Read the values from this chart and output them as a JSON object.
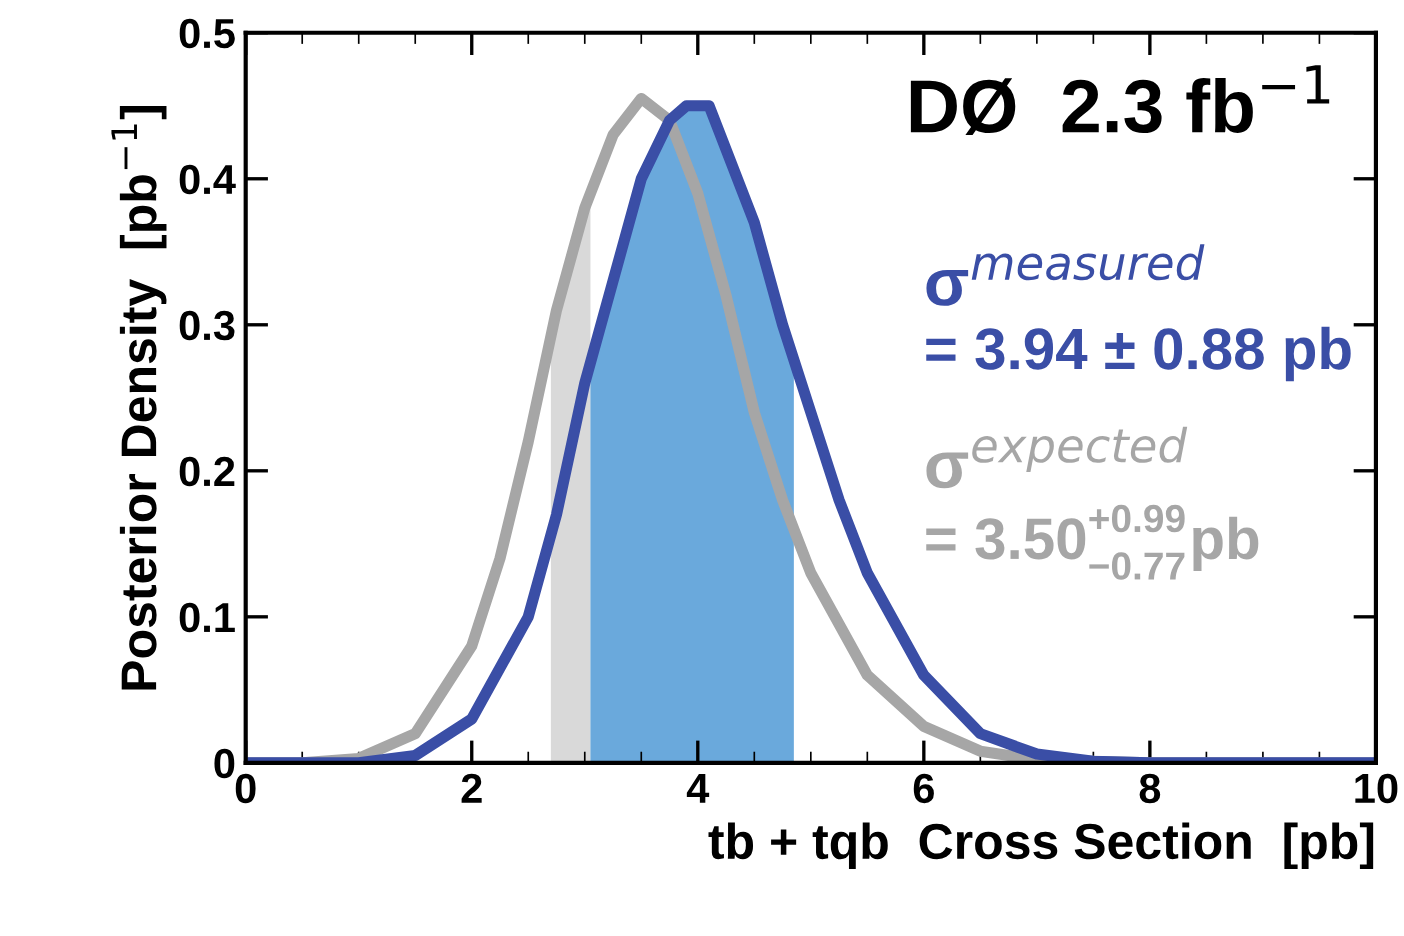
{
  "chart_data": {
    "type": "line",
    "xlabel": "tb + tqb  Cross Section  [pb]",
    "ylabel": "Posterior Density  [pb$^{−1}$]",
    "xlim": [
      0,
      10
    ],
    "ylim": [
      0,
      0.5
    ],
    "xticks": [
      0,
      2,
      4,
      6,
      8,
      10
    ],
    "yticks": [
      0,
      0.1,
      0.2,
      0.3,
      0.4,
      0.5
    ],
    "grid": false,
    "legend": false,
    "marker": "none",
    "line_style": "solid",
    "series": [
      {
        "type": "area",
        "color": "#d9d9d9",
        "x": [
          2.7,
          2.75,
          3.0,
          3.05
        ],
        "values": [
          0.29,
          0.31,
          0.38,
          0.39
        ]
      },
      {
        "type": "area",
        "color": "#6aa9dc",
        "x": [
          3.05,
          3.25,
          3.5,
          3.75,
          3.9,
          4.1,
          4.25,
          4.5,
          4.75,
          4.85
        ],
        "values": [
          0.27,
          0.33,
          0.4,
          0.44,
          0.45,
          0.45,
          0.42,
          0.37,
          0.3,
          0.28
        ]
      },
      {
        "color": "#a6a6a6",
        "x": [
          0,
          0.5,
          1.0,
          1.5,
          2.0,
          2.25,
          2.5,
          2.75,
          3.0,
          3.25,
          3.5,
          3.75,
          4.0,
          4.25,
          4.5,
          4.75,
          5.0,
          5.5,
          6.0,
          6.5,
          7.0,
          8,
          10
        ],
        "values": [
          0,
          0,
          0.003,
          0.02,
          0.08,
          0.14,
          0.22,
          0.31,
          0.38,
          0.43,
          0.455,
          0.44,
          0.39,
          0.32,
          0.24,
          0.18,
          0.13,
          0.06,
          0.025,
          0.008,
          0.002,
          0,
          0
        ]
      },
      {
        "color": "#3a4ea6",
        "x": [
          0,
          1,
          1.5,
          2.0,
          2.5,
          2.75,
          3.0,
          3.25,
          3.5,
          3.75,
          3.9,
          4.1,
          4.25,
          4.5,
          4.75,
          5.0,
          5.25,
          5.5,
          6.0,
          6.5,
          7.0,
          7.5,
          8,
          10
        ],
        "values": [
          0,
          0,
          0.005,
          0.03,
          0.1,
          0.17,
          0.26,
          0.33,
          0.4,
          0.44,
          0.45,
          0.45,
          0.42,
          0.37,
          0.3,
          0.24,
          0.18,
          0.13,
          0.06,
          0.02,
          0.006,
          0.001,
          0,
          0
        ]
      }
    ],
    "annotations": [
      "DØ  2.3 fb$^{−1}$",
      "σ$^{measured}$",
      "= 3.94 ± 0.88 pb",
      "σ$^{expected}$",
      "= 3.50",
      "+0.99",
      "−0.77",
      "pb"
    ]
  }
}
